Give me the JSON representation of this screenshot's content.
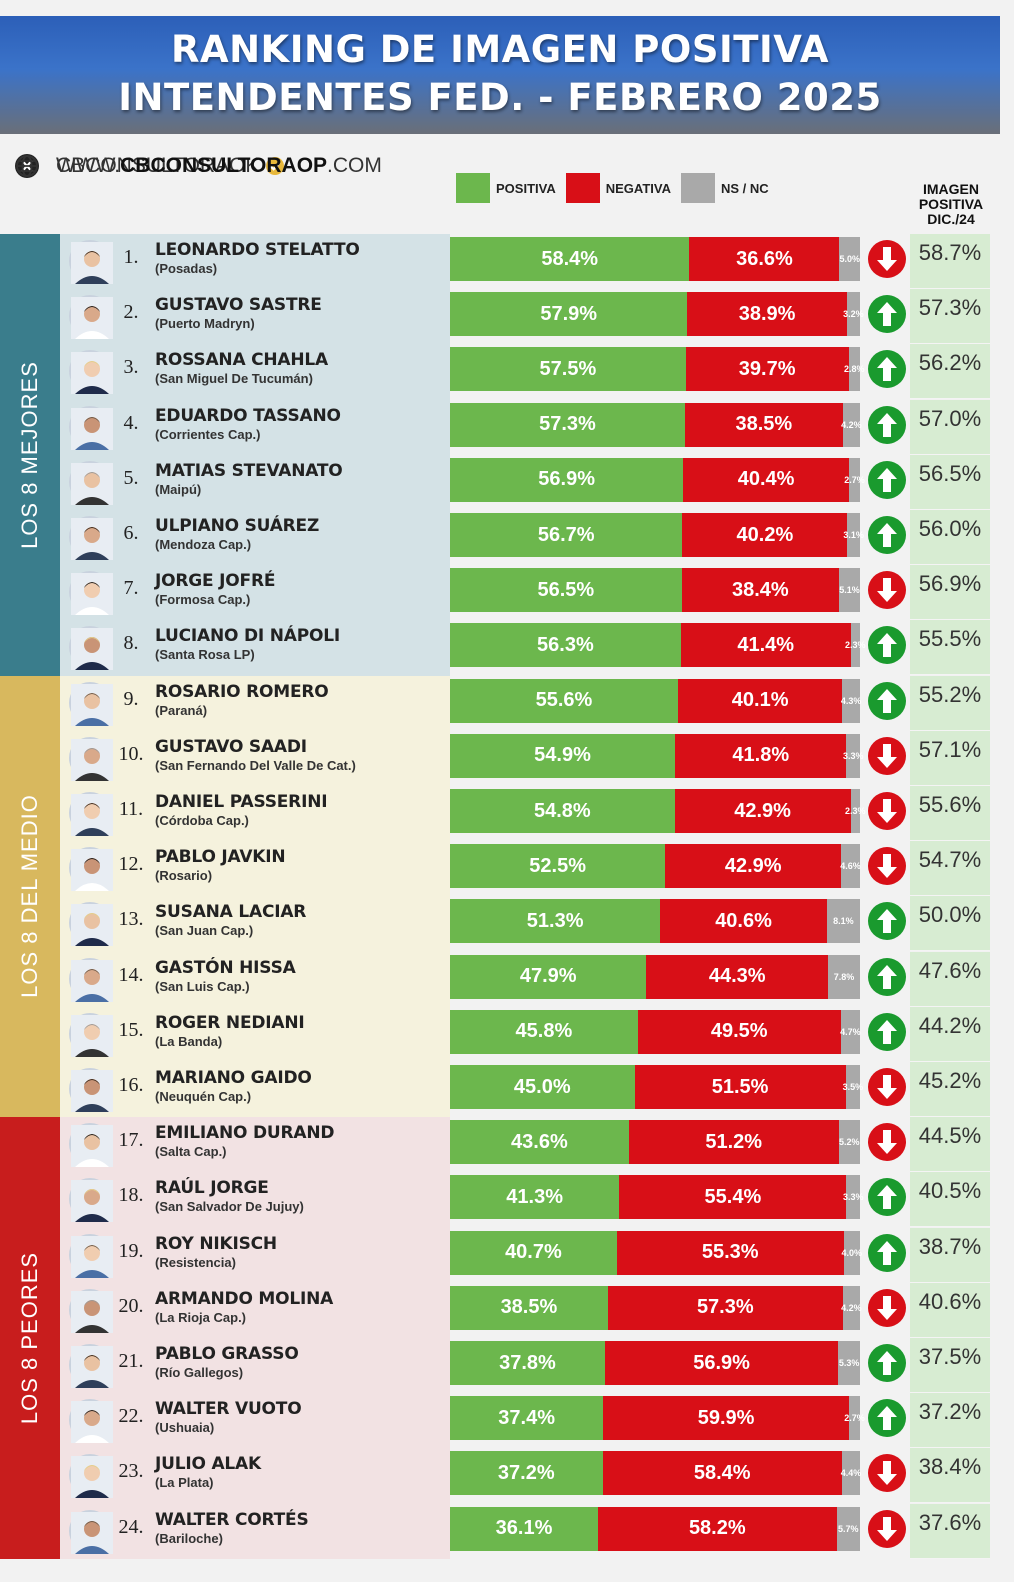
{
  "title_line1": "RANKING DE IMAGEN POSITIVA",
  "title_line2": "INTENDENTES FED. - FEBRERO 2025",
  "social": {
    "handle": "CBCONSULTORAOK",
    "site_prefix": "WWW.",
    "site_bold": "CBCONSULTORAOP",
    "site_suffix": ".COM"
  },
  "legend": {
    "positiva": "POSITIVA",
    "negativa": "NEGATIVA",
    "ns": "NS / NC"
  },
  "prev_header": [
    "IMAGEN",
    "POSITIVA",
    "DIC./24"
  ],
  "groups": [
    {
      "label": "LOS 8 MEJORES",
      "color": "#3a7d8c",
      "bg": "#d4e2e6"
    },
    {
      "label": "LOS 8 DEL MEDIO",
      "color": "#d8b85e",
      "bg": "#f5f2dd"
    },
    {
      "label": "LOS 8 PEORES",
      "color": "#c81d1d",
      "bg": "#f2e2e3"
    }
  ],
  "colors": {
    "positiva": "#6cb74d",
    "negativa": "#d80f17",
    "ns": "#a9a9a9",
    "up": "#1a9a2e",
    "down": "#d80f17"
  },
  "chart_data": {
    "type": "bar",
    "stacked": true,
    "orientation": "horizontal",
    "title": "RANKING DE IMAGEN POSITIVA INTENDENTES FED. - FEBRERO 2025",
    "series": [
      {
        "name": "POSITIVA",
        "values": [
          58.4,
          57.9,
          57.5,
          57.3,
          56.9,
          56.7,
          56.5,
          56.3,
          55.6,
          54.9,
          54.8,
          52.5,
          51.3,
          47.9,
          45.8,
          45.0,
          43.6,
          41.3,
          40.7,
          38.5,
          37.8,
          37.4,
          37.2,
          36.1
        ]
      },
      {
        "name": "NEGATIVA",
        "values": [
          36.6,
          38.9,
          39.7,
          38.5,
          40.4,
          40.2,
          38.4,
          41.4,
          40.1,
          41.8,
          42.9,
          42.9,
          40.6,
          44.3,
          49.5,
          51.5,
          51.2,
          55.4,
          55.3,
          57.3,
          56.9,
          59.9,
          58.4,
          58.2
        ]
      },
      {
        "name": "NS / NC",
        "values": [
          5.0,
          3.2,
          2.8,
          4.2,
          2.7,
          3.1,
          5.1,
          2.3,
          4.3,
          3.3,
          2.3,
          4.6,
          8.1,
          7.8,
          4.7,
          3.5,
          5.2,
          3.3,
          4.0,
          4.2,
          5.3,
          2.7,
          4.4,
          5.7
        ]
      }
    ],
    "rows": [
      {
        "rank": "1.",
        "name": "LEONARDO STELATTO",
        "city": "(Posadas)",
        "pos": "58.4%",
        "neg": "36.6%",
        "ns": "5.0%",
        "trend": "down",
        "prev": "58.7%"
      },
      {
        "rank": "2.",
        "name": "GUSTAVO SASTRE",
        "city": "(Puerto Madryn)",
        "pos": "57.9%",
        "neg": "38.9%",
        "ns": "3.2%",
        "trend": "up",
        "prev": "57.3%"
      },
      {
        "rank": "3.",
        "name": "ROSSANA CHAHLA",
        "city": "(San Miguel De Tucumán)",
        "pos": "57.5%",
        "neg": "39.7%",
        "ns": "2.8%",
        "trend": "up",
        "prev": "56.2%"
      },
      {
        "rank": "4.",
        "name": "EDUARDO TASSANO",
        "city": "(Corrientes Cap.)",
        "pos": "57.3%",
        "neg": "38.5%",
        "ns": "4.2%",
        "trend": "up",
        "prev": "57.0%"
      },
      {
        "rank": "5.",
        "name": "MATIAS STEVANATO",
        "city": "(Maipú)",
        "pos": "56.9%",
        "neg": "40.4%",
        "ns": "2.7%",
        "trend": "up",
        "prev": "56.5%"
      },
      {
        "rank": "6.",
        "name": "ULPIANO SUÁREZ",
        "city": "(Mendoza Cap.)",
        "pos": "56.7%",
        "neg": "40.2%",
        "ns": "3.1%",
        "trend": "up",
        "prev": "56.0%"
      },
      {
        "rank": "7.",
        "name": "JORGE JOFRÉ",
        "city": "(Formosa Cap.)",
        "pos": "56.5%",
        "neg": "38.4%",
        "ns": "5.1%",
        "trend": "down",
        "prev": "56.9%"
      },
      {
        "rank": "8.",
        "name": "LUCIANO DI NÁPOLI",
        "city": "(Santa Rosa LP)",
        "pos": "56.3%",
        "neg": "41.4%",
        "ns": "2.3%",
        "trend": "up",
        "prev": "55.5%"
      },
      {
        "rank": "9.",
        "name": "ROSARIO ROMERO",
        "city": "(Paraná)",
        "pos": "55.6%",
        "neg": "40.1%",
        "ns": "4.3%",
        "trend": "up",
        "prev": "55.2%"
      },
      {
        "rank": "10.",
        "name": "GUSTAVO SAADI",
        "city": "(San Fernando Del Valle De Cat.)",
        "pos": "54.9%",
        "neg": "41.8%",
        "ns": "3.3%",
        "trend": "down",
        "prev": "57.1%"
      },
      {
        "rank": "11.",
        "name": "DANIEL PASSERINI",
        "city": "(Córdoba Cap.)",
        "pos": "54.8%",
        "neg": "42.9%",
        "ns": "2.3%",
        "trend": "down",
        "prev": "55.6%"
      },
      {
        "rank": "12.",
        "name": "PABLO JAVKIN",
        "city": "(Rosario)",
        "pos": "52.5%",
        "neg": "42.9%",
        "ns": "4.6%",
        "trend": "down",
        "prev": "54.7%"
      },
      {
        "rank": "13.",
        "name": "SUSANA LACIAR",
        "city": "(San Juan Cap.)",
        "pos": "51.3%",
        "neg": "40.6%",
        "ns": "8.1%",
        "trend": "up",
        "prev": "50.0%"
      },
      {
        "rank": "14.",
        "name": "GASTÓN HISSA",
        "city": "(San Luis Cap.)",
        "pos": "47.9%",
        "neg": "44.3%",
        "ns": "7.8%",
        "trend": "up",
        "prev": "47.6%"
      },
      {
        "rank": "15.",
        "name": "ROGER NEDIANI",
        "city": "(La Banda)",
        "pos": "45.8%",
        "neg": "49.5%",
        "ns": "4.7%",
        "trend": "up",
        "prev": "44.2%"
      },
      {
        "rank": "16.",
        "name": "MARIANO GAIDO",
        "city": "(Neuquén Cap.)",
        "pos": "45.0%",
        "neg": "51.5%",
        "ns": "3.5%",
        "trend": "down",
        "prev": "45.2%"
      },
      {
        "rank": "17.",
        "name": "EMILIANO DURAND",
        "city": "(Salta Cap.)",
        "pos": "43.6%",
        "neg": "51.2%",
        "ns": "5.2%",
        "trend": "down",
        "prev": "44.5%"
      },
      {
        "rank": "18.",
        "name": "RAÚL JORGE",
        "city": "(San Salvador De Jujuy)",
        "pos": "41.3%",
        "neg": "55.4%",
        "ns": "3.3%",
        "trend": "up",
        "prev": "40.5%"
      },
      {
        "rank": "19.",
        "name": "ROY NIKISCH",
        "city": "(Resistencia)",
        "pos": "40.7%",
        "neg": "55.3%",
        "ns": "4.0%",
        "trend": "up",
        "prev": "38.7%"
      },
      {
        "rank": "20.",
        "name": "ARMANDO MOLINA",
        "city": "(La Rioja Cap.)",
        "pos": "38.5%",
        "neg": "57.3%",
        "ns": "4.2%",
        "trend": "down",
        "prev": "40.6%"
      },
      {
        "rank": "21.",
        "name": "PABLO GRASSO",
        "city": "(Río Gallegos)",
        "pos": "37.8%",
        "neg": "56.9%",
        "ns": "5.3%",
        "trend": "up",
        "prev": "37.5%"
      },
      {
        "rank": "22.",
        "name": "WALTER VUOTO",
        "city": "(Ushuaia)",
        "pos": "37.4%",
        "neg": "59.9%",
        "ns": "2.7%",
        "trend": "up",
        "prev": "37.2%"
      },
      {
        "rank": "23.",
        "name": "JULIO ALAK",
        "city": "(La Plata)",
        "pos": "37.2%",
        "neg": "58.4%",
        "ns": "4.4%",
        "trend": "down",
        "prev": "38.4%"
      },
      {
        "rank": "24.",
        "name": "WALTER CORTÉS",
        "city": "(Bariloche)",
        "pos": "36.1%",
        "neg": "58.2%",
        "ns": "5.7%",
        "trend": "down",
        "prev": "37.6%"
      }
    ]
  }
}
